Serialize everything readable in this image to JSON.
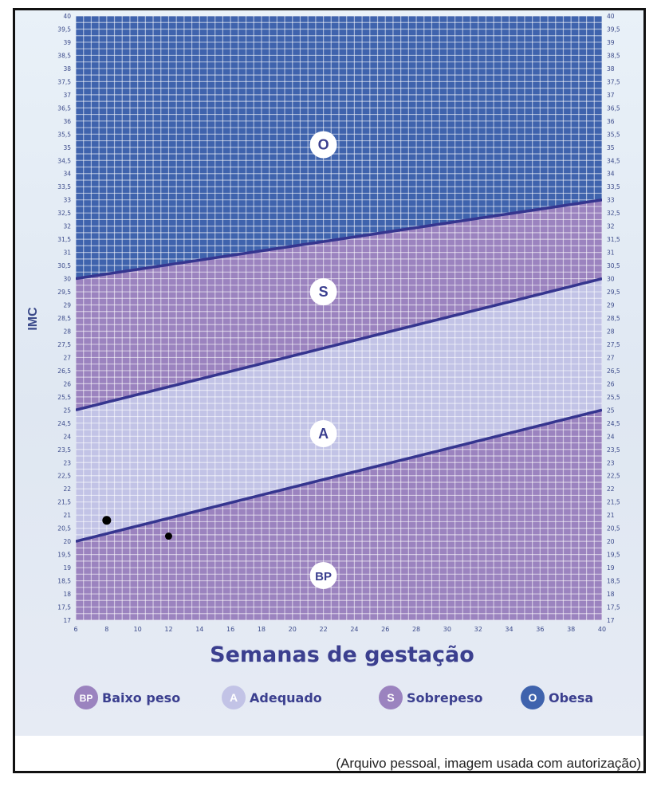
{
  "chart_data": {
    "type": "area",
    "title": "",
    "xlabel": "Semanas de gestação",
    "ylabel": "IMC",
    "xlim": [
      6,
      40
    ],
    "ylim": [
      17,
      40
    ],
    "x_ticks": [
      6,
      8,
      10,
      12,
      14,
      16,
      18,
      20,
      22,
      24,
      26,
      28,
      30,
      32,
      34,
      36,
      38,
      40
    ],
    "y_ticks": [
      17,
      17.5,
      18,
      18.5,
      19,
      19.5,
      20,
      20.5,
      21,
      21.5,
      22,
      22.5,
      23,
      23.5,
      24,
      24.5,
      25,
      25.5,
      26,
      26.5,
      27,
      27.5,
      28,
      28.5,
      29,
      29.5,
      30,
      30.5,
      31,
      31.5,
      32,
      32.5,
      33,
      33.5,
      34,
      34.5,
      35,
      35.5,
      36,
      36.5,
      37,
      37.5,
      38,
      38.5,
      39,
      39.5,
      40
    ],
    "boundaries": [
      {
        "between": "BP-A",
        "x": [
          6,
          40
        ],
        "y": [
          20.0,
          25.0
        ]
      },
      {
        "between": "A-S",
        "x": [
          6,
          40
        ],
        "y": [
          25.0,
          30.0
        ]
      },
      {
        "between": "S-O",
        "x": [
          6,
          40
        ],
        "y": [
          30.0,
          33.0
        ]
      }
    ],
    "regions": [
      {
        "code": "O",
        "name": "Obesa",
        "color": "#3f63ad",
        "label_at": [
          22,
          35.1
        ]
      },
      {
        "code": "S",
        "name": "Sobrepeso",
        "color": "#9b83bf",
        "label_at": [
          22,
          29.5
        ]
      },
      {
        "code": "A",
        "name": "Adequado",
        "color": "#c2c3e6",
        "label_at": [
          22,
          24.1
        ]
      },
      {
        "code": "BP",
        "name": "Baixo peso",
        "color": "#9b83bf",
        "label_at": [
          22,
          18.7
        ]
      }
    ],
    "points": [
      {
        "x": 8,
        "y": 20.8
      },
      {
        "x": 12,
        "y": 20.2
      }
    ],
    "legend": [
      {
        "code": "BP",
        "label": "Baixo peso",
        "color": "#9b83bf"
      },
      {
        "code": "A",
        "label": "Adequado",
        "color": "#c2c3e6"
      },
      {
        "code": "S",
        "label": "Sobrepeso",
        "color": "#9b83bf"
      },
      {
        "code": "O",
        "label": "Obesa",
        "color": "#3f63ad"
      }
    ],
    "grid": true,
    "legend_position": "bottom"
  },
  "caption": "(Arquivo pessoal, imagem usada com autorização)"
}
